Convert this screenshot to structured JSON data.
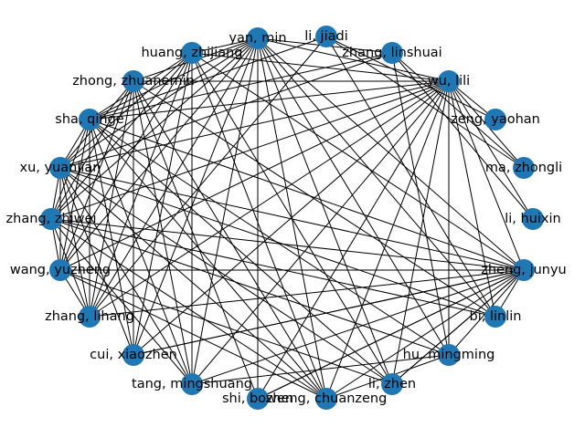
{
  "network": {
    "node_color": "#1f77b4",
    "edge_color": "#000000",
    "nodes": [
      {
        "id": "yan_min",
        "label": "yan, min"
      },
      {
        "id": "li_jiadi",
        "label": "li, jiadi"
      },
      {
        "id": "zhang_linshuai",
        "label": "zhang, linshuai"
      },
      {
        "id": "wu_lili",
        "label": "wu, lili"
      },
      {
        "id": "zeng_yaohan",
        "label": "zeng, yaohan"
      },
      {
        "id": "ma_zhongli",
        "label": "ma, zhongli"
      },
      {
        "id": "li_huixin",
        "label": "li, huixin"
      },
      {
        "id": "zheng_junyu",
        "label": "zheng, junyu"
      },
      {
        "id": "bi_linlin",
        "label": "bi, linlin"
      },
      {
        "id": "hu_mingming",
        "label": "hu, mingming"
      },
      {
        "id": "li_zhen",
        "label": "li, zhen"
      },
      {
        "id": "zheng_chuanzeng",
        "label": "zheng, chuanzeng"
      },
      {
        "id": "shi_bowen",
        "label": "shi, bowen"
      },
      {
        "id": "tang_mingshuang",
        "label": "tang, mingshuang"
      },
      {
        "id": "cui_xiaozhen",
        "label": "cui, xiaozhen"
      },
      {
        "id": "zhang_lihang",
        "label": "zhang, lihang"
      },
      {
        "id": "wang_yuzheng",
        "label": "wang, yuzheng"
      },
      {
        "id": "zhang_zhiwei",
        "label": "zhang, zhiwei"
      },
      {
        "id": "xu_yuanjian",
        "label": "xu, yuanjian"
      },
      {
        "id": "sha_qinge",
        "label": "sha, qinge"
      },
      {
        "id": "zhong_zhuanemin",
        "label": "zhong, zhuanemin"
      },
      {
        "id": "huang_zhijiang",
        "label": "huang, zhijiang"
      }
    ],
    "edges": [
      [
        "yan_min",
        "huang_zhijiang"
      ],
      [
        "yan_min",
        "zhong_zhuanemin"
      ],
      [
        "yan_min",
        "sha_qinge"
      ],
      [
        "yan_min",
        "xu_yuanjian"
      ],
      [
        "yan_min",
        "zhang_zhiwei"
      ],
      [
        "yan_min",
        "wang_yuzheng"
      ],
      [
        "yan_min",
        "zhang_lihang"
      ],
      [
        "yan_min",
        "cui_xiaozhen"
      ],
      [
        "yan_min",
        "tang_mingshuang"
      ],
      [
        "yan_min",
        "shi_bowen"
      ],
      [
        "yan_min",
        "zheng_chuanzeng"
      ],
      [
        "yan_min",
        "li_zhen"
      ],
      [
        "yan_min",
        "hu_mingming"
      ],
      [
        "yan_min",
        "bi_linlin"
      ],
      [
        "yan_min",
        "zheng_junyu"
      ],
      [
        "yan_min",
        "wu_lili"
      ],
      [
        "yan_min",
        "zhang_linshuai"
      ],
      [
        "huang_zhijiang",
        "wu_lili"
      ],
      [
        "huang_zhijiang",
        "sha_qinge"
      ],
      [
        "huang_zhijiang",
        "xu_yuanjian"
      ],
      [
        "huang_zhijiang",
        "zhang_zhiwei"
      ],
      [
        "huang_zhijiang",
        "wang_yuzheng"
      ],
      [
        "huang_zhijiang",
        "zhang_lihang"
      ],
      [
        "huang_zhijiang",
        "cui_xiaozhen"
      ],
      [
        "huang_zhijiang",
        "tang_mingshuang"
      ],
      [
        "huang_zhijiang",
        "zheng_chuanzeng"
      ],
      [
        "huang_zhijiang",
        "zheng_junyu"
      ],
      [
        "huang_zhijiang",
        "li_zhen"
      ],
      [
        "zhong_zhuanemin",
        "wu_lili"
      ],
      [
        "zhong_zhuanemin",
        "xu_yuanjian"
      ],
      [
        "zhong_zhuanemin",
        "zhang_zhiwei"
      ],
      [
        "zhong_zhuanemin",
        "wang_yuzheng"
      ],
      [
        "zhong_zhuanemin",
        "zhang_lihang"
      ],
      [
        "zhong_zhuanemin",
        "cui_xiaozhen"
      ],
      [
        "zhong_zhuanemin",
        "tang_mingshuang"
      ],
      [
        "zhong_zhuanemin",
        "shi_bowen"
      ],
      [
        "zhong_zhuanemin",
        "zheng_chuanzeng"
      ],
      [
        "zhong_zhuanemin",
        "bi_linlin"
      ],
      [
        "sha_qinge",
        "wu_lili"
      ],
      [
        "sha_qinge",
        "zhang_zhiwei"
      ],
      [
        "sha_qinge",
        "wang_yuzheng"
      ],
      [
        "sha_qinge",
        "zhang_lihang"
      ],
      [
        "sha_qinge",
        "cui_xiaozhen"
      ],
      [
        "sha_qinge",
        "tang_mingshuang"
      ],
      [
        "sha_qinge",
        "zheng_chuanzeng"
      ],
      [
        "sha_qinge",
        "li_zhen"
      ],
      [
        "sha_qinge",
        "hu_mingming"
      ],
      [
        "sha_qinge",
        "zheng_junyu"
      ],
      [
        "sha_qinge",
        "xu_yuanjian"
      ],
      [
        "xu_yuanjian",
        "wu_lili"
      ],
      [
        "xu_yuanjian",
        "zhang_zhiwei"
      ],
      [
        "xu_yuanjian",
        "wang_yuzheng"
      ],
      [
        "xu_yuanjian",
        "zhang_lihang"
      ],
      [
        "xu_yuanjian",
        "cui_xiaozhen"
      ],
      [
        "xu_yuanjian",
        "tang_mingshuang"
      ],
      [
        "xu_yuanjian",
        "zheng_chuanzeng"
      ],
      [
        "xu_yuanjian",
        "li_zhen"
      ],
      [
        "xu_yuanjian",
        "bi_linlin"
      ],
      [
        "xu_yuanjian",
        "zheng_junyu"
      ],
      [
        "zhang_zhiwei",
        "wu_lili"
      ],
      [
        "zhang_zhiwei",
        "wang_yuzheng"
      ],
      [
        "zhang_zhiwei",
        "zhang_lihang"
      ],
      [
        "zhang_zhiwei",
        "tang_mingshuang"
      ],
      [
        "zhang_zhiwei",
        "zheng_chuanzeng"
      ],
      [
        "zhang_zhiwei",
        "hu_mingming"
      ],
      [
        "zhang_zhiwei",
        "zheng_junyu"
      ],
      [
        "zhang_zhiwei",
        "bi_linlin"
      ],
      [
        "wang_yuzheng",
        "wu_lili"
      ],
      [
        "wang_yuzheng",
        "zhang_lihang"
      ],
      [
        "wang_yuzheng",
        "zheng_chuanzeng"
      ],
      [
        "wang_yuzheng",
        "zheng_junyu"
      ],
      [
        "wang_yuzheng",
        "li_zhen"
      ],
      [
        "zhang_lihang",
        "wu_lili"
      ],
      [
        "zhang_lihang",
        "zheng_junyu"
      ],
      [
        "cui_xiaozhen",
        "wu_lili"
      ],
      [
        "cui_xiaozhen",
        "zheng_junyu"
      ],
      [
        "tang_mingshuang",
        "wu_lili"
      ],
      [
        "tang_mingshuang",
        "zheng_junyu"
      ],
      [
        "tang_mingshuang",
        "hu_mingming"
      ],
      [
        "shi_bowen",
        "wu_lili"
      ],
      [
        "shi_bowen",
        "zheng_junyu"
      ],
      [
        "zheng_chuanzeng",
        "wu_lili"
      ],
      [
        "zheng_chuanzeng",
        "zheng_junyu"
      ],
      [
        "zheng_chuanzeng",
        "hu_mingming"
      ],
      [
        "li_zhen",
        "wu_lili"
      ],
      [
        "li_zhen",
        "zheng_junyu"
      ],
      [
        "wu_lili",
        "zeng_yaohan"
      ],
      [
        "wu_lili",
        "ma_zhongli"
      ],
      [
        "wu_lili",
        "li_huixin"
      ],
      [
        "wu_lili",
        "zheng_junyu"
      ],
      [
        "wu_lili",
        "bi_linlin"
      ],
      [
        "wu_lili",
        "hu_mingming"
      ],
      [
        "li_jiadi",
        "zeng_yaohan"
      ],
      [
        "li_jiadi",
        "ma_zhongli"
      ],
      [
        "li_jiadi",
        "bi_linlin"
      ],
      [
        "li_jiadi",
        "zhang_lihang"
      ],
      [
        "li_jiadi",
        "sha_qinge"
      ],
      [
        "zhang_linshuai",
        "ma_zhongli"
      ],
      [
        "zhang_linshuai",
        "li_huixin"
      ],
      [
        "zhang_linshuai",
        "hu_mingming"
      ],
      [
        "zhang_linshuai",
        "sha_qinge"
      ],
      [
        "zhang_linshuai",
        "xu_yuanjian"
      ],
      [
        "zheng_junyu",
        "bi_linlin"
      ],
      [
        "zheng_junyu",
        "hu_mingming"
      ],
      [
        "zheng_junyu",
        "li_zhen"
      ],
      [
        "zheng_junyu",
        "shi_bowen"
      ],
      [
        "zheng_junyu",
        "cui_xiaozhen"
      ]
    ]
  }
}
